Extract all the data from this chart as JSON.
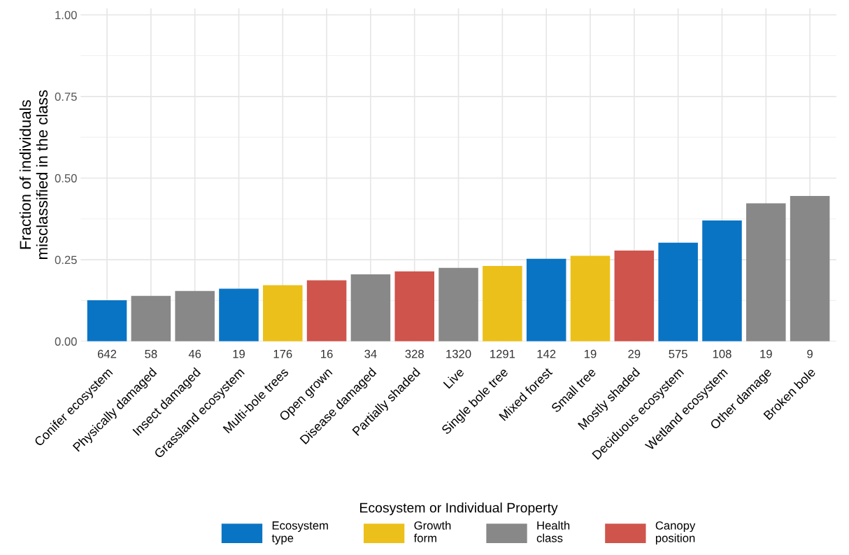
{
  "chart_data": {
    "type": "bar",
    "ylabel": "Fraction of individuals\nmisclassified in the class",
    "legend_title": "Ecosystem or Individual Property",
    "categories": [
      "Conifer ecosystem",
      "Physically damaged",
      "Insect damaged",
      "Grassland ecosystem",
      "Multi-bole trees",
      "Open grown",
      "Disease damaged",
      "Partially shaded",
      "Live",
      "Single bole tree",
      "Mixed forest",
      "Small tree",
      "Mostly shaded",
      "Deciduous ecosystem",
      "Wetland ecosystem",
      "Other damage",
      "Broken bole"
    ],
    "series": [
      {
        "name": "Ecosystem\ntype",
        "color": "#0a74c4",
        "values": [
          0.126,
          null,
          null,
          0.161,
          null,
          null,
          null,
          null,
          null,
          null,
          0.253,
          null,
          null,
          0.302,
          0.37,
          null,
          null
        ]
      },
      {
        "name": "Growth\nform",
        "color": "#ecc01a",
        "values": [
          null,
          null,
          null,
          null,
          0.172,
          null,
          null,
          null,
          null,
          0.231,
          null,
          0.262,
          null,
          null,
          null,
          null,
          null
        ]
      },
      {
        "name": "Health\nclass",
        "color": "#888888",
        "values": [
          null,
          0.139,
          0.154,
          null,
          null,
          null,
          0.205,
          null,
          0.225,
          null,
          null,
          null,
          null,
          null,
          null,
          0.423,
          0.445
        ]
      },
      {
        "name": "Canopy\nposition",
        "color": "#cf544c",
        "values": [
          null,
          null,
          null,
          null,
          null,
          0.187,
          null,
          0.214,
          null,
          null,
          null,
          null,
          0.278,
          null,
          null,
          null,
          null
        ]
      }
    ],
    "annotations": [
      "642",
      "58",
      "46",
      "19",
      "176",
      "16",
      "34",
      "328",
      "1320",
      "1291",
      "142",
      "19",
      "29",
      "575",
      "108",
      "19",
      "9"
    ],
    "ylim": [
      0,
      1.02
    ],
    "yticks": [
      {
        "value": 0,
        "label": "0.00"
      },
      {
        "value": 0.25,
        "label": "0.25"
      },
      {
        "value": 0.5,
        "label": "0.50"
      },
      {
        "value": 0.75,
        "label": "0.75"
      },
      {
        "value": 1,
        "label": "1.00"
      }
    ],
    "grid": true,
    "legend": "bottom"
  }
}
